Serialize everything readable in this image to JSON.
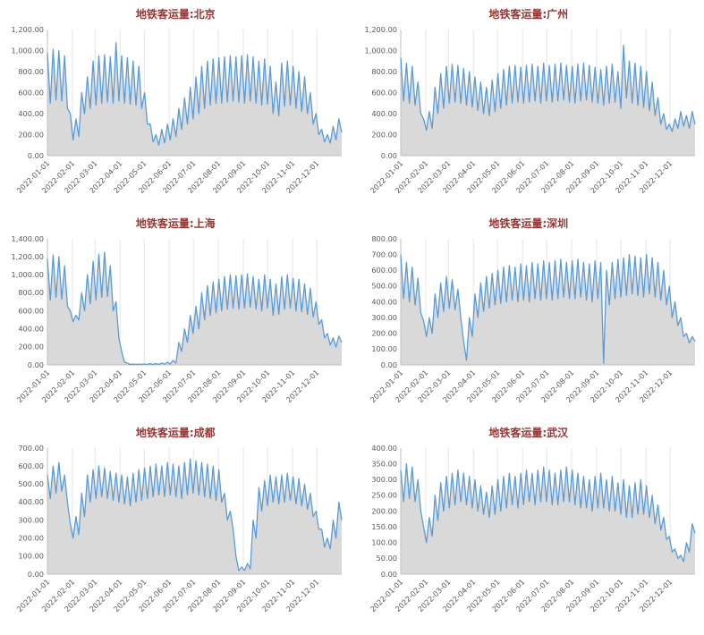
{
  "style": {
    "line_color": "#5B9BD5",
    "area_color": "#d9d9d9",
    "title_color": "#953735",
    "axis_color": "#bfbfbf",
    "grid_color": "#d8d8d8",
    "label_color": "#595959",
    "background": "#ffffff"
  },
  "axis": {
    "x_labels": [
      "2022-01-01",
      "2022-02-01",
      "2022-03-01",
      "2022-04-01",
      "2022-05-01",
      "2022-06-01",
      "2022-07-01",
      "2022-08-01",
      "2022-09-01",
      "2022-10-01",
      "2022-11-01",
      "2022-12-01"
    ],
    "month_start_days": [
      0,
      31,
      59,
      90,
      120,
      151,
      181,
      212,
      243,
      273,
      304,
      334
    ],
    "days_in_year": 365
  },
  "chart_data": [
    {
      "type": "area",
      "title": "地铁客运量:北京",
      "ylim": [
        0,
        1200
      ],
      "ytick_step": 200,
      "legend": "none",
      "grid": "vertical-only",
      "values": [
        980,
        500,
        1010,
        530,
        1000,
        520,
        950,
        450,
        400,
        150,
        350,
        180,
        600,
        400,
        750,
        450,
        900,
        480,
        950,
        500,
        960,
        510,
        940,
        500,
        1075,
        520,
        950,
        500,
        930,
        490,
        900,
        480,
        850,
        450,
        600,
        300,
        300,
        130,
        200,
        100,
        250,
        120,
        300,
        150,
        350,
        180,
        450,
        250,
        550,
        300,
        650,
        350,
        750,
        400,
        850,
        450,
        900,
        480,
        920,
        500,
        930,
        500,
        940,
        510,
        950,
        520,
        940,
        510,
        950,
        500,
        960,
        520,
        940,
        500,
        900,
        480,
        920,
        490,
        850,
        400,
        700,
        380,
        880,
        470,
        900,
        480,
        850,
        450,
        800,
        420,
        750,
        400,
        600,
        300,
        400,
        200,
        250,
        130,
        200,
        120,
        280,
        150,
        350,
        220
      ]
    },
    {
      "type": "area",
      "title": "地铁客运量:广州",
      "ylim": [
        0,
        1200
      ],
      "ytick_step": 200,
      "legend": "none",
      "grid": "vertical-only",
      "values": [
        930,
        520,
        880,
        500,
        850,
        480,
        700,
        400,
        350,
        240,
        420,
        260,
        650,
        400,
        780,
        450,
        850,
        500,
        870,
        510,
        860,
        500,
        830,
        480,
        800,
        460,
        750,
        430,
        700,
        400,
        650,
        380,
        720,
        420,
        780,
        450,
        820,
        480,
        850,
        500,
        860,
        510,
        840,
        500,
        860,
        510,
        870,
        520,
        850,
        500,
        880,
        520,
        860,
        510,
        870,
        520,
        880,
        530,
        860,
        510,
        850,
        500,
        870,
        520,
        880,
        530,
        860,
        510,
        840,
        500,
        820,
        480,
        850,
        500,
        870,
        510,
        800,
        450,
        1050,
        550,
        900,
        500,
        880,
        480,
        850,
        460,
        800,
        430,
        700,
        380,
        550,
        300,
        400,
        250,
        300,
        230,
        350,
        260,
        420,
        280,
        380,
        260,
        420,
        300
      ]
    },
    {
      "type": "area",
      "title": "地铁客运量:上海",
      "ylim": [
        0,
        1400
      ],
      "ytick_step": 200,
      "legend": "none",
      "grid": "vertical-only",
      "values": [
        1180,
        720,
        1220,
        750,
        1200,
        730,
        1100,
        650,
        600,
        480,
        550,
        500,
        800,
        600,
        1000,
        680,
        1150,
        720,
        1230,
        750,
        1250,
        760,
        1100,
        600,
        700,
        300,
        150,
        30,
        20,
        5,
        10,
        5,
        10,
        5,
        10,
        5,
        15,
        5,
        15,
        5,
        20,
        10,
        30,
        10,
        50,
        20,
        250,
        150,
        400,
        250,
        550,
        350,
        650,
        400,
        800,
        500,
        880,
        550,
        920,
        580,
        950,
        600,
        980,
        620,
        1000,
        630,
        990,
        620,
        1000,
        630,
        1010,
        640,
        980,
        620,
        950,
        600,
        1000,
        630,
        950,
        550,
        900,
        560,
        980,
        620,
        1000,
        630,
        960,
        600,
        950,
        590,
        900,
        560,
        850,
        530,
        700,
        450,
        500,
        300,
        350,
        220,
        300,
        200,
        320,
        250
      ]
    },
    {
      "type": "area",
      "title": "地铁客运量:深圳",
      "ylim": [
        0,
        800
      ],
      "ytick_step": 100,
      "legend": "none",
      "grid": "vertical-only",
      "values": [
        700,
        420,
        650,
        400,
        620,
        380,
        550,
        330,
        280,
        180,
        300,
        200,
        450,
        300,
        520,
        340,
        560,
        360,
        540,
        350,
        480,
        300,
        150,
        30,
        300,
        180,
        450,
        300,
        520,
        340,
        560,
        360,
        580,
        380,
        600,
        390,
        620,
        400,
        630,
        410,
        620,
        400,
        640,
        410,
        630,
        400,
        650,
        420,
        640,
        410,
        660,
        420,
        650,
        410,
        660,
        420,
        670,
        430,
        650,
        420,
        660,
        420,
        670,
        430,
        650,
        410,
        640,
        400,
        660,
        420,
        650,
        10,
        600,
        380,
        650,
        420,
        670,
        430,
        680,
        440,
        700,
        450,
        690,
        440,
        680,
        430,
        700,
        450,
        680,
        430,
        650,
        410,
        600,
        380,
        500,
        300,
        400,
        250,
        300,
        180,
        200,
        140,
        180,
        150
      ]
    },
    {
      "type": "area",
      "title": "地铁客运量:成都",
      "ylim": [
        0,
        700
      ],
      "ytick_step": 100,
      "legend": "none",
      "grid": "vertical-only",
      "values": [
        550,
        420,
        600,
        450,
        620,
        460,
        550,
        400,
        280,
        200,
        320,
        220,
        450,
        320,
        550,
        400,
        580,
        420,
        600,
        430,
        590,
        420,
        570,
        410,
        560,
        400,
        550,
        390,
        540,
        380,
        560,
        400,
        580,
        410,
        590,
        420,
        600,
        430,
        610,
        440,
        600,
        430,
        620,
        440,
        610,
        430,
        600,
        420,
        620,
        440,
        640,
        450,
        630,
        440,
        620,
        430,
        610,
        420,
        600,
        410,
        580,
        400,
        450,
        300,
        350,
        250,
        100,
        20,
        40,
        20,
        60,
        30,
        300,
        200,
        480,
        350,
        520,
        380,
        550,
        400,
        540,
        390,
        550,
        400,
        560,
        410,
        540,
        390,
        530,
        380,
        500,
        360,
        450,
        320,
        350,
        250,
        250,
        150,
        200,
        140,
        300,
        200,
        400,
        300
      ]
    },
    {
      "type": "area",
      "title": "地铁客运量:武汉",
      "ylim": [
        0,
        400
      ],
      "ytick_step": 50,
      "legend": "none",
      "grid": "vertical-only",
      "values": [
        330,
        230,
        350,
        240,
        340,
        230,
        300,
        200,
        150,
        100,
        180,
        120,
        250,
        170,
        290,
        200,
        310,
        210,
        320,
        220,
        330,
        230,
        320,
        220,
        310,
        210,
        300,
        200,
        280,
        190,
        260,
        180,
        280,
        190,
        300,
        200,
        310,
        210,
        320,
        220,
        310,
        210,
        320,
        220,
        330,
        230,
        320,
        220,
        330,
        230,
        340,
        230,
        330,
        220,
        320,
        220,
        330,
        230,
        340,
        230,
        330,
        220,
        320,
        210,
        310,
        210,
        300,
        200,
        310,
        210,
        320,
        210,
        300,
        200,
        310,
        200,
        290,
        190,
        300,
        180,
        280,
        180,
        290,
        190,
        300,
        190,
        280,
        180,
        250,
        160,
        220,
        140,
        180,
        110,
        120,
        70,
        80,
        50,
        60,
        40,
        100,
        70,
        160,
        130
      ]
    }
  ]
}
